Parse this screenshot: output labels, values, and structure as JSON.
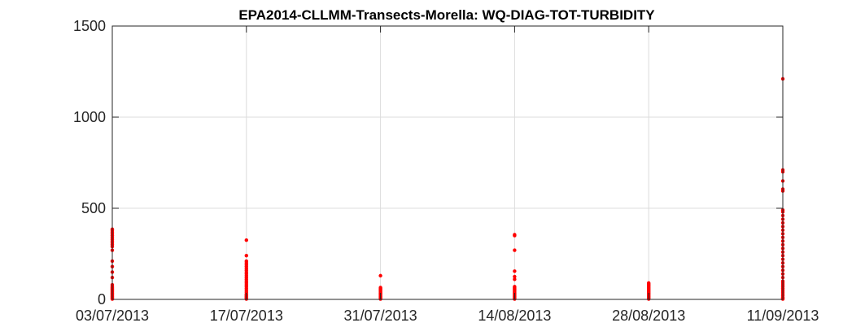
{
  "chart_data": {
    "type": "scatter",
    "title": "EPA2014-CLLMM-Transects-Morella: WQ-DIAG-TOT-TURBIDITY",
    "xlabel": "",
    "ylabel": "",
    "x_axis_type": "date",
    "xlim": [
      "03/07/2013",
      "11/09/2013"
    ],
    "ylim": [
      0,
      1500
    ],
    "x_ticks": [
      "03/07/2013",
      "17/07/2013",
      "31/07/2013",
      "14/08/2013",
      "28/08/2013",
      "11/09/2013"
    ],
    "y_ticks": [
      0,
      500,
      1000,
      1500
    ],
    "grid": true,
    "legend": "none",
    "marker_color": "#ff0000",
    "clusters": [
      {
        "x": "03/07/2013",
        "y": [
          2,
          5,
          10,
          15,
          20,
          25,
          30,
          35,
          40,
          45,
          50,
          55,
          60,
          65,
          70,
          80,
          120,
          150,
          180,
          210,
          270,
          290,
          300,
          310,
          320,
          330,
          340,
          350,
          360,
          370,
          380,
          385
        ]
      },
      {
        "x": "17/07/2013",
        "y": [
          2,
          5,
          10,
          15,
          20,
          25,
          30,
          40,
          50,
          60,
          70,
          80,
          90,
          100,
          110,
          120,
          130,
          140,
          150,
          160,
          170,
          180,
          190,
          200,
          210,
          240,
          325
        ]
      },
      {
        "x": "31/07/2013",
        "y": [
          2,
          5,
          10,
          15,
          20,
          25,
          30,
          35,
          40,
          45,
          50,
          55,
          60,
          65,
          130
        ]
      },
      {
        "x": "14/08/2013",
        "y": [
          2,
          5,
          10,
          15,
          20,
          25,
          30,
          35,
          40,
          45,
          50,
          55,
          60,
          65,
          70,
          110,
          125,
          155,
          270,
          350,
          355
        ]
      },
      {
        "x": "28/08/2013",
        "y": [
          2,
          5,
          10,
          15,
          20,
          25,
          30,
          35,
          40,
          45,
          50,
          55,
          60,
          65,
          70,
          75,
          80,
          85,
          90
        ]
      },
      {
        "x": "11/09/2013",
        "y": [
          2,
          5,
          10,
          20,
          30,
          40,
          50,
          60,
          70,
          80,
          90,
          100,
          120,
          140,
          160,
          180,
          200,
          220,
          240,
          260,
          280,
          300,
          320,
          340,
          360,
          380,
          400,
          420,
          440,
          460,
          480,
          490,
          595,
          605,
          650,
          700,
          710,
          1210
        ]
      }
    ]
  }
}
